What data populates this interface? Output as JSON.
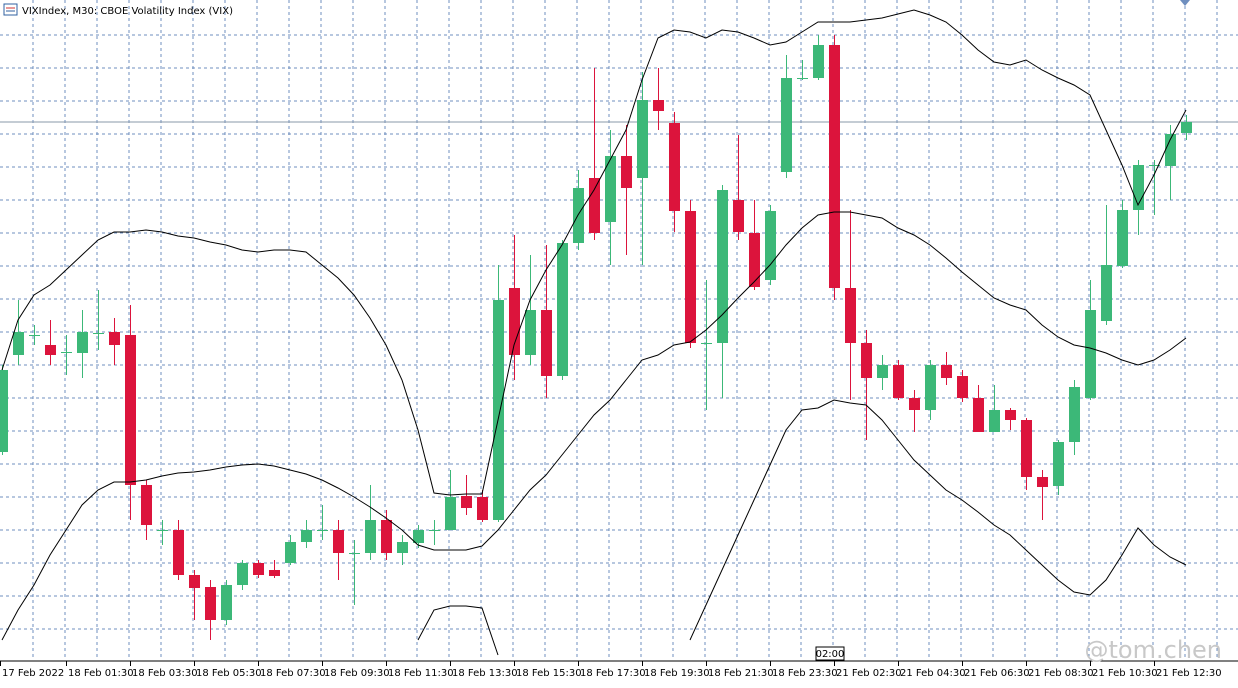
{
  "chart_data": {
    "type": "candlestick",
    "title": "VIXIndex, M30: CBOE Volatility Index (VIX)",
    "categories": [
      "17 Feb 2022",
      null,
      null,
      null,
      "18 Feb 01:30",
      null,
      null,
      null,
      "18 Feb 03:30",
      null,
      null,
      null,
      "18 Feb 05:30",
      null,
      null,
      null,
      "18 Feb 07:30",
      null,
      null,
      null,
      "18 Feb 09:30",
      null,
      null,
      null,
      "18 Feb 11:30",
      null,
      null,
      null,
      "18 Feb 13:30",
      null,
      null,
      null,
      "18 Feb 15:30",
      null,
      null,
      null,
      "18 Feb 17:30",
      null,
      null,
      null,
      "18 Feb 19:30",
      null,
      null,
      null,
      "18 Feb 21:30",
      null,
      null,
      null,
      "18 Feb 23:30",
      null,
      null,
      null,
      "21 Feb 02:30",
      null,
      null,
      null,
      "21 Feb 04:30",
      null,
      null,
      null,
      "21 Feb 06:30",
      null,
      null,
      null,
      "21 Feb 08:30",
      null,
      null,
      null,
      "21 Feb 10:30",
      null,
      null,
      null,
      "21 Feb 12:30",
      null,
      null
    ],
    "open": [
      27.08,
      28.05,
      28.25,
      28.15,
      28.08,
      28.07,
      28.27,
      28.28,
      28.25,
      26.75,
      26.3,
      26.3,
      25.85,
      25.73,
      25.4,
      25.75,
      25.97,
      25.9,
      25.97,
      26.18,
      26.3,
      26.3,
      26.07,
      26.07,
      26.4,
      26.07,
      26.17,
      26.3,
      26.3,
      26.64,
      26.63,
      26.4,
      28.72,
      28.05,
      28.5,
      27.84,
      29.17,
      29.82,
      29.38,
      30.04,
      29.82,
      30.6,
      30.37,
      29.49,
      28.17,
      28.17,
      29.6,
      29.27,
      28.8,
      29.88,
      30.82,
      30.82,
      31.15,
      28.72,
      28.17,
      27.82,
      27.95,
      27.62,
      27.5,
      27.95,
      27.84,
      27.62,
      27.28,
      27.5,
      27.4,
      26.83,
      26.74,
      27.18,
      27.62,
      28.39,
      28.94,
      29.5,
      29.95,
      29.94,
      30.27
    ],
    "high": [
      27.95,
      28.6,
      28.35,
      28.4,
      28.25,
      28.5,
      28.7,
      28.42,
      28.55,
      26.8,
      26.4,
      26.4,
      25.9,
      25.8,
      25.8,
      26.0,
      26.0,
      26.0,
      26.25,
      26.4,
      26.55,
      26.4,
      26.2,
      26.75,
      26.5,
      26.25,
      26.35,
      26.4,
      26.9,
      26.85,
      26.7,
      28.95,
      29.25,
      29.05,
      29.15,
      29.2,
      29.9,
      30.92,
      30.3,
      30.35,
      30.88,
      30.92,
      30.48,
      29.6,
      28.8,
      29.75,
      30.25,
      29.6,
      29.55,
      31.05,
      31.0,
      31.25,
      31.25,
      29.5,
      28.3,
      28.05,
      28.0,
      27.7,
      28.0,
      28.08,
      27.9,
      27.75,
      27.75,
      27.52,
      27.42,
      26.9,
      27.2,
      27.8,
      28.8,
      29.55,
      29.6,
      30.0,
      30.0,
      30.35,
      30.45
    ],
    "low": [
      27.05,
      27.95,
      28.15,
      27.95,
      27.85,
      27.82,
      28.1,
      27.95,
      26.4,
      26.2,
      26.15,
      25.8,
      25.4,
      25.2,
      25.35,
      25.7,
      25.82,
      25.82,
      25.95,
      26.12,
      26.2,
      25.8,
      25.55,
      26.0,
      26.0,
      25.95,
      26.12,
      26.15,
      26.3,
      26.45,
      26.38,
      26.38,
      27.8,
      27.95,
      27.62,
      27.8,
      29.1,
      29.2,
      28.95,
      29.05,
      28.95,
      30.3,
      29.28,
      28.12,
      27.5,
      27.62,
      29.2,
      28.7,
      28.75,
      29.82,
      30.8,
      30.8,
      28.6,
      27.6,
      27.2,
      27.7,
      27.6,
      27.28,
      27.4,
      27.75,
      27.58,
      27.28,
      27.28,
      27.3,
      26.7,
      26.4,
      26.65,
      27.05,
      27.6,
      28.35,
      28.92,
      29.25,
      29.45,
      29.6,
      30.2
    ],
    "close": [
      27.9,
      28.28,
      28.25,
      28.05,
      28.08,
      28.28,
      28.27,
      28.15,
      26.75,
      26.35,
      26.3,
      25.85,
      25.72,
      25.4,
      25.75,
      25.97,
      25.85,
      25.84,
      26.18,
      26.3,
      26.3,
      26.07,
      26.07,
      26.4,
      26.07,
      26.18,
      26.3,
      26.3,
      26.63,
      26.52,
      26.4,
      28.6,
      28.05,
      28.5,
      27.84,
      29.17,
      29.72,
      29.27,
      30.04,
      29.72,
      30.6,
      30.49,
      29.49,
      28.17,
      28.17,
      29.7,
      29.28,
      28.73,
      29.49,
      30.82,
      30.82,
      31.15,
      28.72,
      28.17,
      27.82,
      27.95,
      27.62,
      27.5,
      27.95,
      27.82,
      27.62,
      27.28,
      27.5,
      27.4,
      26.83,
      26.73,
      27.18,
      27.73,
      28.5,
      28.95,
      29.5,
      29.95,
      29.95,
      30.26,
      30.38
    ],
    "up_color": "#3cb878",
    "down_color": "#dc143c",
    "bands": [
      {
        "color": "#000000",
        "values": [
          27.9,
          28.4,
          28.65,
          28.75,
          28.9,
          29.05,
          29.2,
          29.28,
          29.28,
          29.3,
          29.28,
          29.24,
          29.22,
          29.18,
          29.15,
          29.1,
          29.08,
          29.1,
          29.1,
          29.08,
          28.95,
          28.82,
          28.65,
          28.42,
          28.15,
          27.8,
          27.3,
          26.67,
          26.65,
          26.66,
          26.66,
          27.4,
          28.15,
          28.6,
          28.9,
          29.15,
          29.45,
          29.7,
          30.0,
          30.3,
          30.8,
          31.22,
          31.3,
          31.28,
          31.22,
          31.3,
          31.28,
          31.22,
          31.15,
          31.18,
          31.28,
          31.38,
          31.38,
          31.38,
          31.4,
          31.42,
          31.46,
          31.5,
          31.45,
          31.38,
          31.25,
          31.1,
          30.98,
          30.95,
          31.0,
          30.9,
          30.82,
          30.75,
          30.65,
          30.3,
          29.95,
          29.55,
          29.85,
          30.2,
          30.5
        ]
      },
      {
        "color": "#000000",
        "values": [
          25.2,
          25.5,
          25.75,
          26.05,
          26.3,
          26.55,
          26.7,
          26.78,
          26.78,
          26.8,
          26.84,
          26.87,
          26.88,
          26.9,
          26.93,
          26.95,
          26.96,
          26.94,
          26.9,
          26.86,
          26.8,
          26.72,
          26.63,
          26.53,
          26.42,
          26.3,
          26.15,
          26.1,
          26.1,
          26.1,
          26.14,
          26.3,
          26.5,
          26.7,
          26.85,
          27.05,
          27.25,
          27.45,
          27.6,
          27.8,
          28.0,
          28.05,
          28.15,
          28.18,
          28.3,
          28.45,
          28.62,
          28.78,
          28.95,
          29.15,
          29.32,
          29.45,
          29.48,
          29.48,
          29.45,
          29.42,
          29.32,
          29.25,
          29.15,
          29.02,
          28.88,
          28.75,
          28.62,
          28.55,
          28.5,
          28.35,
          28.23,
          28.15,
          28.12,
          28.07,
          28.0,
          27.95,
          28.0,
          28.1,
          28.22
        ]
      },
      {
        "color": "#000000",
        "values": [
          null,
          null,
          null,
          null,
          null,
          null,
          null,
          null,
          null,
          null,
          null,
          null,
          null,
          null,
          null,
          null,
          null,
          null,
          null,
          null,
          null,
          null,
          null,
          null,
          null,
          null,
          25.2,
          25.5,
          25.54,
          25.54,
          25.52,
          25.05,
          null,
          null,
          null,
          null,
          null,
          null,
          null,
          null,
          null,
          null,
          null,
          25.2,
          25.55,
          25.9,
          26.25,
          26.6,
          26.95,
          27.3,
          27.5,
          27.52,
          27.6,
          27.57,
          27.55,
          27.4,
          27.2,
          27.0,
          26.85,
          26.7,
          26.6,
          26.48,
          26.35,
          26.25,
          26.1,
          25.95,
          25.8,
          25.68,
          25.65,
          25.8,
          26.05,
          26.32,
          26.15,
          26.03,
          25.95
        ]
      }
    ],
    "price_line": 30.38,
    "price_line_color": "#8a9aa8",
    "ylim": [
      25,
      31.6
    ],
    "grid": true,
    "grid_color": "#6f8fbf",
    "crosshair_label": "02:00",
    "watermark": "@tom.chen"
  }
}
